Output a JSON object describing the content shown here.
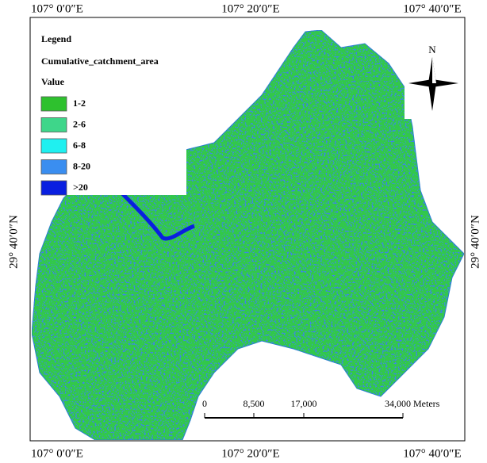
{
  "grid_labels": {
    "top": [
      "107° 0′0″E",
      "107° 20′0″E",
      "107° 40′0″E"
    ],
    "bottom": [
      "107° 0′0″E",
      "107° 20′0″E",
      "107° 40′0″E"
    ],
    "left": "29° 40′0″N",
    "right": "29° 40′0″N"
  },
  "legend": {
    "title": "Legend",
    "layer": "Cumulative_catchment_area",
    "field": "Value",
    "items": [
      {
        "label": "1-2",
        "color": "#2ec12e"
      },
      {
        "label": "2-6",
        "color": "#3ed68a"
      },
      {
        "label": "6-8",
        "color": "#1ff0f0"
      },
      {
        "label": "8-20",
        "color": "#3a8ef0"
      },
      {
        "label": ">20",
        "color": "#0a1fe0"
      }
    ]
  },
  "north_arrow": "N",
  "scale_bar": {
    "labels": [
      "0",
      "8,500",
      "17,000",
      "34,000 Meters"
    ]
  }
}
